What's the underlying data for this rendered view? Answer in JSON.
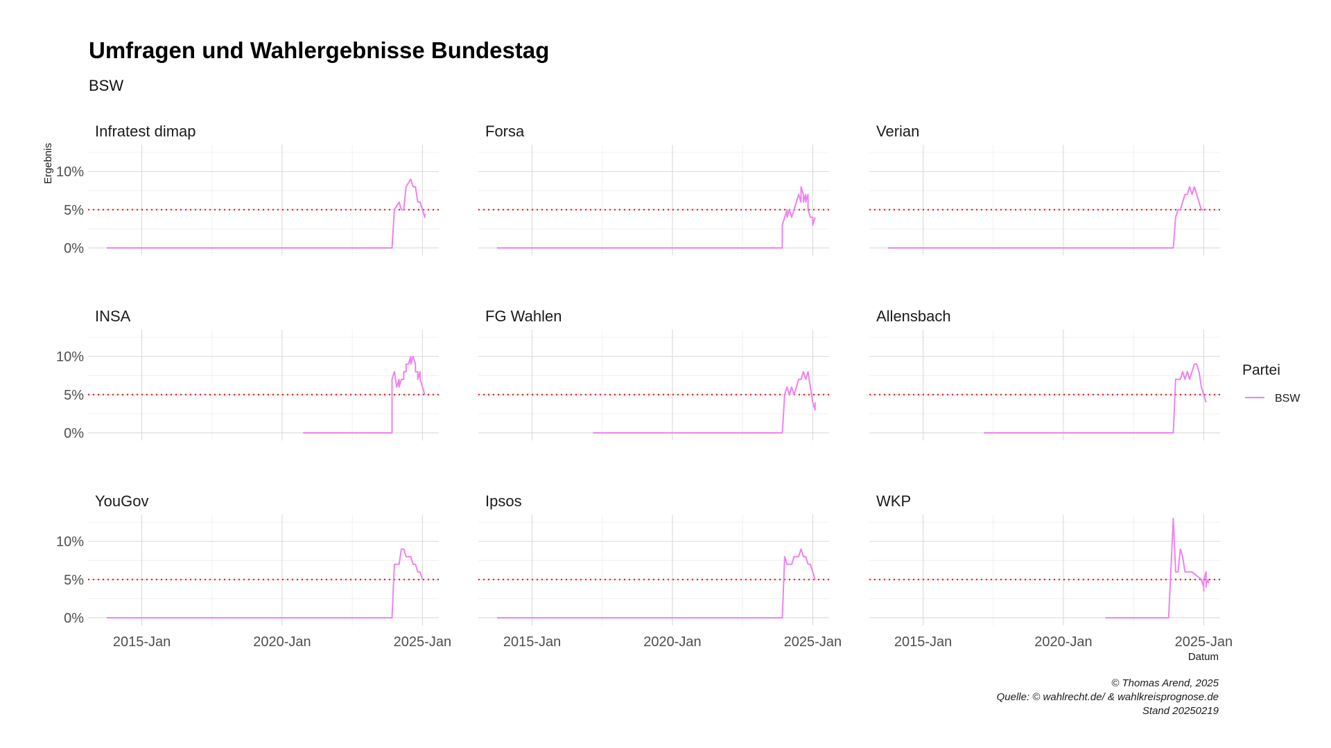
{
  "chart_data": {
    "type": "line",
    "title": "Umfragen und Wahlergebnisse Bundestag",
    "subtitle": "BSW",
    "xlabel": "Datum",
    "ylabel": "Ergebnis",
    "x_ticks": [
      "2015-Jan",
      "2020-Jan",
      "2025-Jan"
    ],
    "y_ticks": [
      "0%",
      "5%",
      "10%"
    ],
    "xlim": [
      "2013-02",
      "2025-08"
    ],
    "ylim": [
      -1,
      13.5
    ],
    "reference_line": {
      "y": 5,
      "color": "#ff0000",
      "style": "dotted"
    },
    "grid": true,
    "legend": {
      "title": "Partei",
      "position": "right",
      "entries": [
        {
          "name": "BSW",
          "color": "#ee82ee"
        }
      ]
    },
    "caption": [
      "© Thomas Arend, 2025",
      "Quelle: © wahlrecht.de/ & wahlkreisprognose.de",
      "Stand 20250219"
    ],
    "facets": [
      {
        "name": "Infratest dimap",
        "series": [
          {
            "name": "BSW",
            "points": [
              [
                "2013-10",
                0
              ],
              [
                "2023-12",
                0
              ],
              [
                "2024-01",
                5
              ],
              [
                "2024-03",
                6
              ],
              [
                "2024-04",
                5
              ],
              [
                "2024-05",
                5
              ],
              [
                "2024-06",
                8
              ],
              [
                "2024-08",
                9
              ],
              [
                "2024-09",
                8
              ],
              [
                "2024-10",
                8
              ],
              [
                "2024-11",
                6
              ],
              [
                "2024-12",
                6
              ],
              [
                "2025-01",
                5
              ],
              [
                "2025-02",
                4
              ],
              [
                "2025-02",
                4.5
              ]
            ]
          }
        ]
      },
      {
        "name": "Forsa",
        "series": [
          {
            "name": "BSW",
            "points": [
              [
                "2013-10",
                0
              ],
              [
                "2023-12",
                0
              ],
              [
                "2023-12",
                3
              ],
              [
                "2024-01",
                4
              ],
              [
                "2024-02",
                5
              ],
              [
                "2024-02",
                4
              ],
              [
                "2024-03",
                5
              ],
              [
                "2024-04",
                4
              ],
              [
                "2024-05",
                5
              ],
              [
                "2024-06",
                6
              ],
              [
                "2024-07",
                7
              ],
              [
                "2024-08",
                6
              ],
              [
                "2024-08",
                8
              ],
              [
                "2024-09",
                7
              ],
              [
                "2024-09",
                6
              ],
              [
                "2024-10",
                7
              ],
              [
                "2024-10",
                6
              ],
              [
                "2024-11",
                7
              ],
              [
                "2024-11",
                5
              ],
              [
                "2024-12",
                4
              ],
              [
                "2025-01",
                4
              ],
              [
                "2025-01",
                3
              ],
              [
                "2025-02",
                4
              ]
            ]
          }
        ]
      },
      {
        "name": "Verian",
        "series": [
          {
            "name": "BSW",
            "points": [
              [
                "2013-10",
                0
              ],
              [
                "2023-12",
                0
              ],
              [
                "2024-01",
                4
              ],
              [
                "2024-02",
                5
              ],
              [
                "2024-03",
                5
              ],
              [
                "2024-04",
                6
              ],
              [
                "2024-05",
                7
              ],
              [
                "2024-06",
                7
              ],
              [
                "2024-07",
                8
              ],
              [
                "2024-08",
                7
              ],
              [
                "2024-09",
                8
              ],
              [
                "2024-10",
                7
              ],
              [
                "2024-11",
                6
              ],
              [
                "2024-12",
                5
              ],
              [
                "2025-01",
                5
              ]
            ]
          }
        ]
      },
      {
        "name": "INSA",
        "series": [
          {
            "name": "BSW",
            "points": [
              [
                "2020-10",
                0
              ],
              [
                "2023-12",
                0
              ],
              [
                "2023-12",
                7
              ],
              [
                "2024-01",
                8
              ],
              [
                "2024-02",
                6
              ],
              [
                "2024-03",
                7
              ],
              [
                "2024-03",
                6
              ],
              [
                "2024-04",
                7
              ],
              [
                "2024-05",
                7
              ],
              [
                "2024-05",
                8
              ],
              [
                "2024-06",
                8
              ],
              [
                "2024-06",
                9
              ],
              [
                "2024-07",
                9
              ],
              [
                "2024-08",
                10
              ],
              [
                "2024-08",
                9
              ],
              [
                "2024-09",
                10
              ],
              [
                "2024-10",
                9
              ],
              [
                "2024-10",
                8
              ],
              [
                "2024-11",
                8
              ],
              [
                "2024-11",
                7
              ],
              [
                "2024-12",
                8
              ],
              [
                "2024-12",
                7
              ],
              [
                "2025-01",
                6
              ],
              [
                "2025-02",
                5
              ]
            ]
          }
        ]
      },
      {
        "name": "FG Wahlen",
        "series": [
          {
            "name": "BSW",
            "points": [
              [
                "2017-03",
                0
              ],
              [
                "2023-12",
                0
              ],
              [
                "2024-01",
                5
              ],
              [
                "2024-02",
                6
              ],
              [
                "2024-03",
                5
              ],
              [
                "2024-04",
                6
              ],
              [
                "2024-05",
                5
              ],
              [
                "2024-06",
                6
              ],
              [
                "2024-07",
                7
              ],
              [
                "2024-08",
                7
              ],
              [
                "2024-09",
                8
              ],
              [
                "2024-10",
                7
              ],
              [
                "2024-11",
                8
              ],
              [
                "2024-12",
                6
              ],
              [
                "2025-01",
                4
              ],
              [
                "2025-02",
                3
              ],
              [
                "2025-02",
                4
              ]
            ]
          }
        ]
      },
      {
        "name": "Allensbach",
        "series": [
          {
            "name": "BSW",
            "points": [
              [
                "2017-03",
                0
              ],
              [
                "2023-12",
                0
              ],
              [
                "2024-01",
                7
              ],
              [
                "2024-03",
                7
              ],
              [
                "2024-04",
                8
              ],
              [
                "2024-05",
                7
              ],
              [
                "2024-06",
                8
              ],
              [
                "2024-07",
                7
              ],
              [
                "2024-08",
                8
              ],
              [
                "2024-09",
                9
              ],
              [
                "2024-10",
                9
              ],
              [
                "2024-11",
                8
              ],
              [
                "2024-12",
                6
              ],
              [
                "2025-01",
                5
              ],
              [
                "2025-02",
                4
              ]
            ]
          }
        ]
      },
      {
        "name": "YouGov",
        "series": [
          {
            "name": "BSW",
            "points": [
              [
                "2013-10",
                0
              ],
              [
                "2023-12",
                0
              ],
              [
                "2024-01",
                7
              ],
              [
                "2024-03",
                7
              ],
              [
                "2024-04",
                9
              ],
              [
                "2024-05",
                9
              ],
              [
                "2024-06",
                8
              ],
              [
                "2024-08",
                8
              ],
              [
                "2024-09",
                7
              ],
              [
                "2024-10",
                7
              ],
              [
                "2024-11",
                6
              ],
              [
                "2024-12",
                6
              ],
              [
                "2025-01",
                5
              ]
            ]
          }
        ]
      },
      {
        "name": "Ipsos",
        "series": [
          {
            "name": "BSW",
            "points": [
              [
                "2013-10",
                0
              ],
              [
                "2023-12",
                0
              ],
              [
                "2024-01",
                8
              ],
              [
                "2024-02",
                7
              ],
              [
                "2024-04",
                7
              ],
              [
                "2024-05",
                8
              ],
              [
                "2024-06",
                8
              ],
              [
                "2024-07",
                8
              ],
              [
                "2024-08",
                9
              ],
              [
                "2024-09",
                8
              ],
              [
                "2024-10",
                8
              ],
              [
                "2024-11",
                7
              ],
              [
                "2024-12",
                7
              ],
              [
                "2025-01",
                6
              ],
              [
                "2025-02",
                5
              ]
            ]
          }
        ]
      },
      {
        "name": "WKP",
        "series": [
          {
            "name": "BSW",
            "points": [
              [
                "2021-07",
                0
              ],
              [
                "2023-10",
                0
              ],
              [
                "2023-12",
                13
              ],
              [
                "2024-01",
                6
              ],
              [
                "2024-02",
                6
              ],
              [
                "2024-03",
                9
              ],
              [
                "2024-04",
                8
              ],
              [
                "2024-05",
                6
              ],
              [
                "2024-06",
                6
              ],
              [
                "2024-08",
                6
              ],
              [
                "2024-10",
                5.5
              ],
              [
                "2024-12",
                5
              ],
              [
                "2025-01",
                4
              ],
              [
                "2025-01",
                3.5
              ],
              [
                "2025-01",
                5
              ],
              [
                "2025-02",
                6
              ],
              [
                "2025-02",
                4
              ],
              [
                "2025-02",
                4.5
              ],
              [
                "2025-03",
                5
              ],
              [
                "2025-03",
                4.5
              ]
            ]
          }
        ]
      }
    ]
  }
}
